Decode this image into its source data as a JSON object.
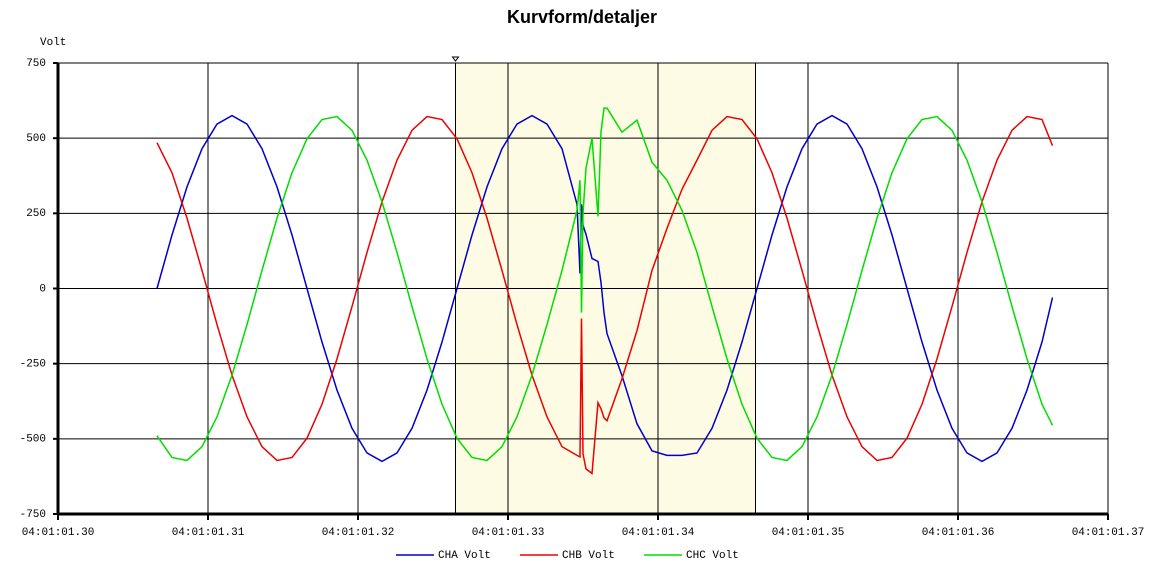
{
  "chart_data": {
    "type": "line",
    "title": "Kurvform/detaljer",
    "y_label": "Volt",
    "xlim": [
      1.3,
      1.37
    ],
    "xticks": [
      {
        "value": 1.3,
        "label": "04:01:01.30"
      },
      {
        "value": 1.31,
        "label": "04:01:01.31"
      },
      {
        "value": 1.32,
        "label": "04:01:01.32"
      },
      {
        "value": 1.33,
        "label": "04:01:01.33"
      },
      {
        "value": 1.34,
        "label": "04:01:01.34"
      },
      {
        "value": 1.35,
        "label": "04:01:01.35"
      },
      {
        "value": 1.36,
        "label": "04:01:01.36"
      },
      {
        "value": 1.37,
        "label": "04:01:01.37"
      }
    ],
    "ylim": [
      -750,
      750
    ],
    "yticks": [
      -750,
      -500,
      -250,
      0,
      250,
      500,
      750
    ],
    "grid": true,
    "legend": "bottom",
    "highlight_x": [
      1.3265,
      1.3465
    ],
    "highlight_color": "#fdfbe3",
    "x": [
      1.3066,
      1.3076,
      1.3086,
      1.3096,
      1.3106,
      1.3116,
      1.3126,
      1.3136,
      1.3146,
      1.3156,
      1.3166,
      1.3176,
      1.3186,
      1.3196,
      1.3206,
      1.3216,
      1.3226,
      1.3236,
      1.3246,
      1.3256,
      1.3266,
      1.3276,
      1.3286,
      1.3296,
      1.3306,
      1.3316,
      1.3326,
      1.3336,
      1.3346,
      1.3348,
      1.3349,
      1.335,
      1.3352,
      1.3356,
      1.336,
      1.3362,
      1.3364,
      1.3366,
      1.3376,
      1.3386,
      1.3396,
      1.3406,
      1.3416,
      1.3426,
      1.3436,
      1.3446,
      1.3456,
      1.3466,
      1.3476,
      1.3486,
      1.3496,
      1.3506,
      1.3516,
      1.3526,
      1.3536,
      1.3546,
      1.3556,
      1.3566,
      1.3576,
      1.3586,
      1.3596,
      1.3606,
      1.3616,
      1.3626,
      1.3636,
      1.3646,
      1.3656,
      1.3663
    ],
    "series": [
      {
        "name": "CHA Volt",
        "color": "#0000cc",
        "values": [
          0,
          178,
          338,
          465,
          547,
          575,
          547,
          465,
          338,
          178,
          0,
          -178,
          -338,
          -465,
          -547,
          -575,
          -547,
          -465,
          -338,
          -178,
          0,
          178,
          338,
          465,
          547,
          575,
          547,
          465,
          280,
          50,
          280,
          210,
          180,
          100,
          90,
          20,
          -80,
          -150,
          -290,
          -450,
          -540,
          -555,
          -555,
          -547,
          -465,
          -338,
          -178,
          0,
          178,
          338,
          465,
          547,
          575,
          547,
          465,
          338,
          178,
          0,
          -178,
          -338,
          -465,
          -547,
          -575,
          -547,
          -465,
          -338,
          -178,
          -30
        ]
      },
      {
        "name": "CHB Volt",
        "color": "#ee0000",
        "values": [
          485,
          385,
          234,
          60,
          -120,
          -288,
          -427,
          -526,
          -572,
          -562,
          -498,
          -385,
          -234,
          -60,
          120,
          288,
          427,
          526,
          572,
          562,
          498,
          385,
          234,
          60,
          -120,
          -288,
          -427,
          -526,
          -555,
          -560,
          -100,
          -550,
          -600,
          -615,
          -380,
          -400,
          -430,
          -440,
          -300,
          -140,
          60,
          200,
          330,
          427,
          526,
          572,
          562,
          498,
          385,
          234,
          60,
          -120,
          -288,
          -427,
          -526,
          -572,
          -562,
          -498,
          -385,
          -234,
          -60,
          120,
          288,
          427,
          526,
          572,
          562,
          475
        ]
      },
      {
        "name": "CHC Volt",
        "color": "#00dd00",
        "values": [
          -490,
          -562,
          -572,
          -526,
          -427,
          -288,
          -120,
          60,
          234,
          385,
          498,
          562,
          572,
          526,
          427,
          288,
          120,
          -60,
          -234,
          -385,
          -498,
          -562,
          -572,
          -526,
          -427,
          -288,
          -120,
          60,
          260,
          360,
          -80,
          250,
          400,
          500,
          240,
          520,
          600,
          600,
          520,
          560,
          420,
          360,
          260,
          120,
          -60,
          -234,
          -385,
          -498,
          -562,
          -572,
          -526,
          -427,
          -288,
          -120,
          60,
          234,
          385,
          498,
          562,
          572,
          526,
          427,
          288,
          120,
          -60,
          -234,
          -385,
          -455
        ]
      }
    ]
  }
}
